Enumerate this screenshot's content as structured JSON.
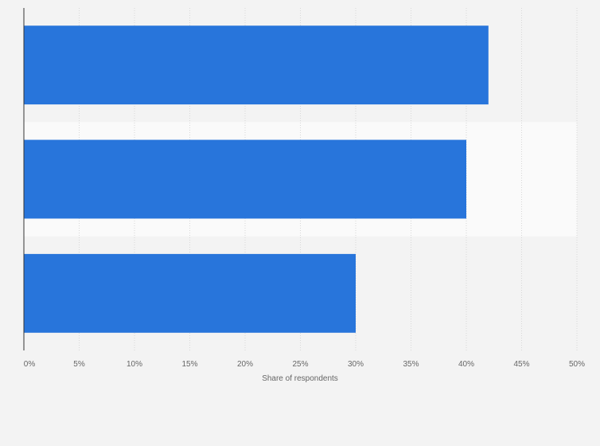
{
  "chart_data": {
    "type": "bar",
    "orientation": "horizontal",
    "categories": [
      "",
      "",
      ""
    ],
    "values": [
      42,
      40,
      30
    ],
    "xlabel": "Share of respondents",
    "ylabel": "",
    "xlim": [
      0,
      50
    ],
    "x_ticks": [
      "0%",
      "5%",
      "10%",
      "15%",
      "20%",
      "25%",
      "30%",
      "35%",
      "40%",
      "45%",
      "50%"
    ],
    "grid": true,
    "bar_color": "#2875db",
    "background_color": "#f3f3f3",
    "band_color": "#fafafa"
  }
}
